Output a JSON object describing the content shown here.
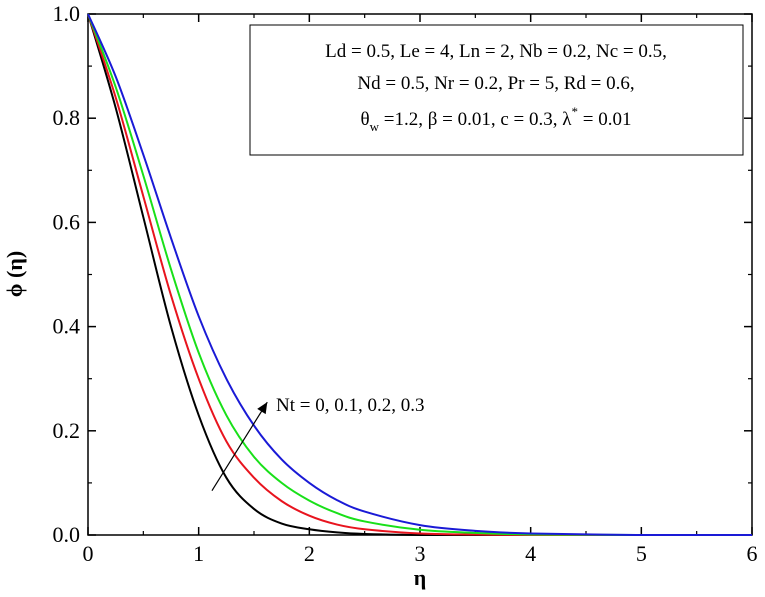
{
  "chart_data": {
    "type": "line",
    "title": "",
    "xlabel": "η",
    "ylabel": "ϕ (η)",
    "xlim": [
      0,
      6
    ],
    "ylim": [
      0,
      1.0
    ],
    "xticks": [
      "0",
      "1",
      "2",
      "3",
      "4",
      "5",
      "6"
    ],
    "yticks": [
      "0.0",
      "0.2",
      "0.4",
      "0.6",
      "0.8",
      "1.0"
    ],
    "grid": false,
    "series": [
      {
        "color": "#000000",
        "x": [
          0,
          0.25,
          0.5,
          0.75,
          1.0,
          1.25,
          1.5,
          1.75,
          2.0,
          2.25,
          2.5,
          3.0,
          3.5,
          4.0,
          5.0,
          6.0
        ],
        "y": [
          1.0,
          0.82,
          0.61,
          0.4,
          0.23,
          0.11,
          0.05,
          0.022,
          0.011,
          0.005,
          0.002,
          0.0,
          0.0,
          0.0,
          0.0,
          0.0
        ]
      },
      {
        "color": "#e8141e",
        "x": [
          0,
          0.25,
          0.5,
          0.75,
          1.0,
          1.25,
          1.5,
          1.75,
          2.0,
          2.25,
          2.5,
          3.0,
          3.5,
          4.0,
          5.0,
          6.0
        ],
        "y": [
          1.0,
          0.84,
          0.65,
          0.46,
          0.3,
          0.18,
          0.11,
          0.065,
          0.037,
          0.02,
          0.011,
          0.003,
          0.001,
          0.0,
          0.0,
          0.0
        ]
      },
      {
        "color": "#19e019",
        "x": [
          0,
          0.25,
          0.5,
          0.75,
          1.0,
          1.25,
          1.5,
          1.75,
          2.0,
          2.25,
          2.5,
          3.0,
          3.5,
          4.0,
          5.0,
          6.0
        ],
        "y": [
          1.0,
          0.86,
          0.69,
          0.51,
          0.35,
          0.23,
          0.15,
          0.1,
          0.066,
          0.042,
          0.026,
          0.01,
          0.004,
          0.001,
          0.0,
          0.0
        ]
      },
      {
        "color": "#1a1ad6",
        "x": [
          0,
          0.25,
          0.5,
          0.75,
          1.0,
          1.25,
          1.5,
          1.75,
          2.0,
          2.25,
          2.5,
          3.0,
          3.5,
          4.0,
          5.0,
          6.0
        ],
        "y": [
          1.0,
          0.88,
          0.73,
          0.57,
          0.42,
          0.3,
          0.21,
          0.145,
          0.1,
          0.067,
          0.045,
          0.019,
          0.008,
          0.003,
          0.0,
          0.0
        ]
      }
    ],
    "legend_box": {
      "placement": "top-right",
      "line1": "Ld = 0.5, Le = 4, Ln = 2, Nb = 0.2, Nc = 0.5,",
      "line2": "Nd = 0.5, Nr = 0.2, Pr = 5, Rd = 0.6,",
      "line3_theta": "θ",
      "line3_sub": "w",
      "line3_mid": " =1.2, β = 0.01, c = 0.3, λ",
      "line3_sup": "*",
      "line3_end": " = 0.01"
    },
    "annotation": {
      "text": "Nt = 0, 0.1, 0.2, 0.3",
      "arrow_from": [
        1.12,
        0.085
      ],
      "arrow_to": [
        1.62,
        0.255
      ]
    }
  }
}
